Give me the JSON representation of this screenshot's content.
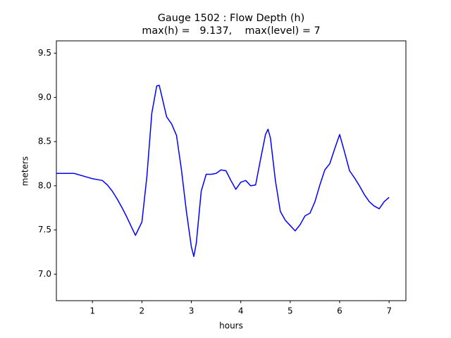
{
  "chart_data": {
    "type": "line",
    "title": "Gauge 1502 : Flow Depth (h)",
    "subtitle": "max(h) =   9.137,    max(level) = 7",
    "x_label": "hours",
    "y_label": "meters",
    "x": [
      0.27,
      0.63,
      1.0,
      1.2,
      1.3,
      1.4,
      1.5,
      1.6,
      1.7,
      1.8,
      1.87,
      2.0,
      2.1,
      2.2,
      2.3,
      2.35,
      2.4,
      2.5,
      2.6,
      2.7,
      2.8,
      2.9,
      3.0,
      3.05,
      3.1,
      3.2,
      3.3,
      3.4,
      3.5,
      3.6,
      3.7,
      3.8,
      3.9,
      4.0,
      4.1,
      4.2,
      4.3,
      4.4,
      4.5,
      4.55,
      4.6,
      4.7,
      4.8,
      4.9,
      5.0,
      5.1,
      5.2,
      5.3,
      5.4,
      5.5,
      5.6,
      5.7,
      5.8,
      5.9,
      6.0,
      6.1,
      6.2,
      6.3,
      6.4,
      6.5,
      6.6,
      6.7,
      6.8,
      6.9,
      7.0
    ],
    "series": [
      {
        "name": "h",
        "color": "#0000ff",
        "values": [
          8.14,
          8.14,
          8.08,
          8.06,
          8.01,
          7.94,
          7.85,
          7.75,
          7.64,
          7.52,
          7.44,
          7.59,
          8.1,
          8.82,
          9.13,
          9.137,
          9.02,
          8.78,
          8.7,
          8.57,
          8.18,
          7.71,
          7.31,
          7.2,
          7.35,
          7.94,
          8.13,
          8.13,
          8.14,
          8.18,
          8.17,
          8.06,
          7.96,
          8.04,
          8.06,
          8.0,
          8.01,
          8.3,
          8.58,
          8.64,
          8.54,
          8.06,
          7.71,
          7.61,
          7.55,
          7.49,
          7.56,
          7.66,
          7.69,
          7.82,
          8.01,
          8.18,
          8.25,
          8.42,
          8.58,
          8.38,
          8.17,
          8.09,
          8.0,
          7.9,
          7.82,
          7.77,
          7.74,
          7.82,
          7.87
        ]
      }
    ],
    "xlim": [
      0.27,
      7.34
    ],
    "ylim": [
      6.7,
      9.64
    ],
    "xticks": [
      1,
      2,
      3,
      4,
      5,
      6,
      7
    ],
    "yticks": [
      {
        "value": 7,
        "label": "7.0"
      },
      7.5,
      {
        "value": 8,
        "label": "8.0"
      },
      8.5,
      {
        "value": 9,
        "label": "9.0"
      },
      9.5
    ],
    "grid": false
  }
}
